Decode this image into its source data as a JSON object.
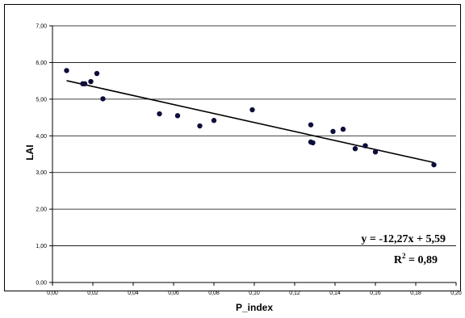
{
  "chart_data": {
    "type": "scatter",
    "xlabel": "P_index",
    "ylabel": "LAI",
    "xlim": [
      0,
      0.2
    ],
    "ylim": [
      0,
      7
    ],
    "xticks": [
      {
        "v": 0.0,
        "label": "0,00"
      },
      {
        "v": 0.02,
        "label": "0,02"
      },
      {
        "v": 0.04,
        "label": "0,04"
      },
      {
        "v": 0.06,
        "label": "0,06"
      },
      {
        "v": 0.08,
        "label": "0,08"
      },
      {
        "v": 0.1,
        "label": "0,10"
      },
      {
        "v": 0.12,
        "label": "0,12"
      },
      {
        "v": 0.14,
        "label": "0,14"
      },
      {
        "v": 0.16,
        "label": "0,16"
      },
      {
        "v": 0.18,
        "label": "0,18"
      },
      {
        "v": 0.2,
        "label": "0,20"
      }
    ],
    "yticks": [
      {
        "v": 0,
        "label": "0,00"
      },
      {
        "v": 1,
        "label": "1,00"
      },
      {
        "v": 2,
        "label": "2,00"
      },
      {
        "v": 3,
        "label": "3,00"
      },
      {
        "v": 4,
        "label": "4,00"
      },
      {
        "v": 5,
        "label": "5,00"
      },
      {
        "v": 6,
        "label": "6,00"
      },
      {
        "v": 7,
        "label": "7,00"
      }
    ],
    "grid": "horizontal",
    "points": [
      {
        "x": 0.007,
        "y": 5.78
      },
      {
        "x": 0.015,
        "y": 5.42
      },
      {
        "x": 0.016,
        "y": 5.42
      },
      {
        "x": 0.019,
        "y": 5.48
      },
      {
        "x": 0.022,
        "y": 5.7
      },
      {
        "x": 0.025,
        "y": 5.01
      },
      {
        "x": 0.053,
        "y": 4.6
      },
      {
        "x": 0.062,
        "y": 4.55
      },
      {
        "x": 0.073,
        "y": 4.27
      },
      {
        "x": 0.08,
        "y": 4.42
      },
      {
        "x": 0.099,
        "y": 4.71
      },
      {
        "x": 0.128,
        "y": 4.3
      },
      {
        "x": 0.128,
        "y": 3.83
      },
      {
        "x": 0.129,
        "y": 3.81
      },
      {
        "x": 0.139,
        "y": 4.12
      },
      {
        "x": 0.144,
        "y": 4.18
      },
      {
        "x": 0.15,
        "y": 3.65
      },
      {
        "x": 0.155,
        "y": 3.73
      },
      {
        "x": 0.16,
        "y": 3.56
      },
      {
        "x": 0.189,
        "y": 3.21
      }
    ],
    "trendline": {
      "slope": -12.27,
      "intercept": 5.59,
      "x_start": 0.007,
      "x_end": 0.189
    },
    "equation": "y = -12,27x + 5,59",
    "r2_base": "R",
    "r2_exp": "2",
    "r2_value": " = 0,89",
    "colors": {
      "point": "#0d0d3a",
      "line": "#000000",
      "grid": "#000000"
    }
  }
}
